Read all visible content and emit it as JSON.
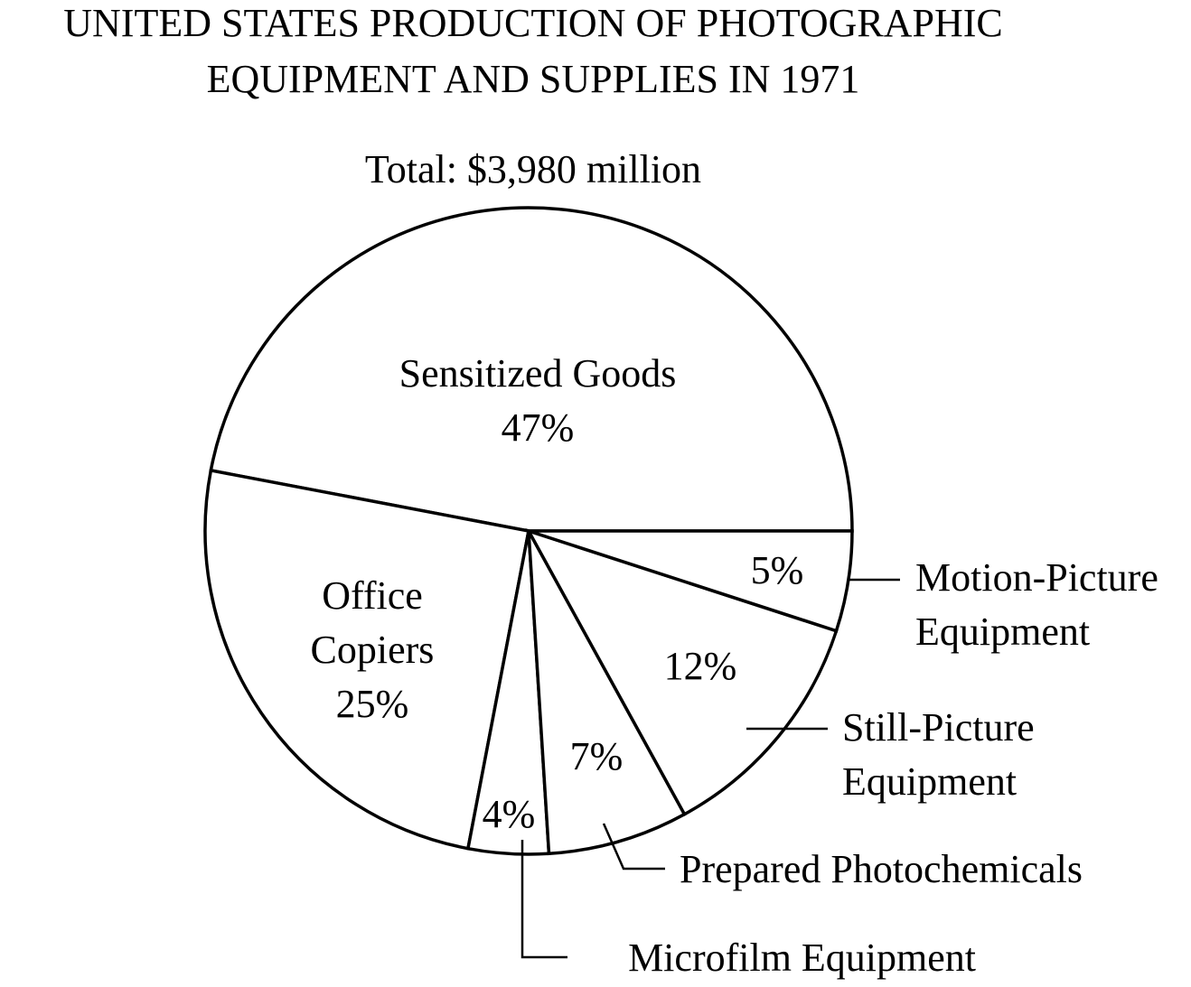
{
  "chart_data": {
    "type": "pie",
    "title": [
      "UNITED STATES PRODUCTION OF PHOTOGRAPHIC",
      "EQUIPMENT AND SUPPLIES IN 1971"
    ],
    "subtitle": "Total:  $3,980 million",
    "slices": [
      {
        "name": "Sensitized Goods",
        "value": 47,
        "label": "47%",
        "name_lines": [
          "Sensitized Goods"
        ]
      },
      {
        "name": "Office Copiers",
        "value": 25,
        "label": "25%",
        "name_lines": [
          "Office",
          "Copiers"
        ]
      },
      {
        "name": "Microfilm Equipment",
        "value": 4,
        "label": "4%",
        "name_lines": [
          "Microfilm Equipment"
        ]
      },
      {
        "name": "Prepared Photochemicals",
        "value": 7,
        "label": "7%",
        "name_lines": [
          "Prepared Photochemicals"
        ]
      },
      {
        "name": "Still-Picture Equipment",
        "value": 12,
        "label": "12%",
        "name_lines": [
          "Still-Picture",
          "Equipment"
        ]
      },
      {
        "name": "Motion-Picture Equipment",
        "value": 5,
        "label": "5%",
        "name_lines": [
          "Motion-Picture",
          "Equipment"
        ]
      }
    ]
  }
}
